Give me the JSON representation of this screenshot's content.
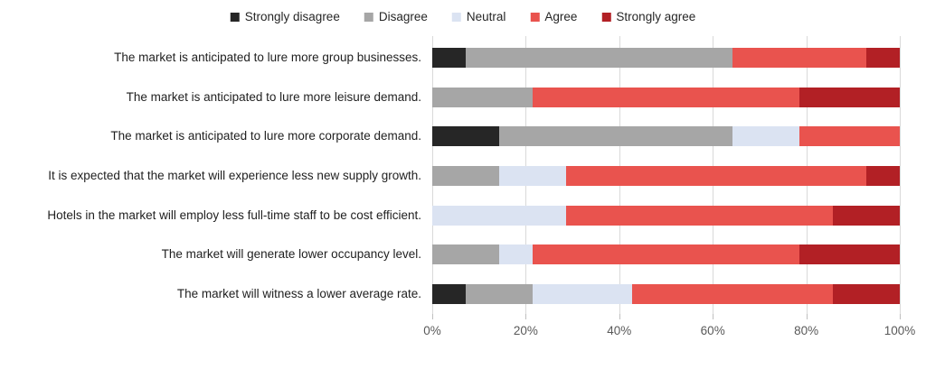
{
  "legend": [
    {
      "label": "Strongly disagree",
      "color": "#262626"
    },
    {
      "label": "Disagree",
      "color": "#a6a6a6"
    },
    {
      "label": "Neutral",
      "color": "#dbe3f2"
    },
    {
      "label": "Agree",
      "color": "#e9534e"
    },
    {
      "label": "Strongly agree",
      "color": "#b22025"
    }
  ],
  "chart_data": {
    "type": "bar",
    "orientation": "horizontal",
    "stacked": true,
    "units": "percent of respondents",
    "title": "",
    "xlabel": "",
    "ylabel": "",
    "xlim": [
      0,
      100
    ],
    "grid": true,
    "legend_position": "top",
    "categories": [
      "The market is anticipated to lure more group businesses.",
      "The market is anticipated to lure more leisure demand.",
      "The market is anticipated to lure more corporate demand.",
      "It is expected that the market will experience less new supply growth.",
      "Hotels in the market will employ less full-time staff to be cost efficient.",
      "The market will generate lower occupancy level.",
      "The market will witness a lower average rate."
    ],
    "series": [
      {
        "name": "Strongly disagree",
        "color": "#262626",
        "values": [
          7.1,
          0,
          14.3,
          0,
          0,
          0,
          7.1
        ]
      },
      {
        "name": "Disagree",
        "color": "#a6a6a6",
        "values": [
          57.1,
          21.4,
          50.0,
          14.3,
          0,
          14.3,
          14.3
        ]
      },
      {
        "name": "Neutral",
        "color": "#dbe3f2",
        "values": [
          0,
          0,
          14.3,
          14.3,
          28.6,
          7.1,
          21.4
        ]
      },
      {
        "name": "Agree",
        "color": "#e9534e",
        "values": [
          28.6,
          57.1,
          21.4,
          64.3,
          57.1,
          57.1,
          42.9
        ]
      },
      {
        "name": "Strongly agree",
        "color": "#b22025",
        "values": [
          7.1,
          21.4,
          0,
          7.1,
          14.3,
          21.4,
          14.3
        ]
      }
    ],
    "x_axis": {
      "ticks": [
        "0%",
        "20%",
        "40%",
        "60%",
        "80%",
        "100%"
      ],
      "tick_values": [
        0,
        20,
        40,
        60,
        80,
        100
      ]
    }
  }
}
